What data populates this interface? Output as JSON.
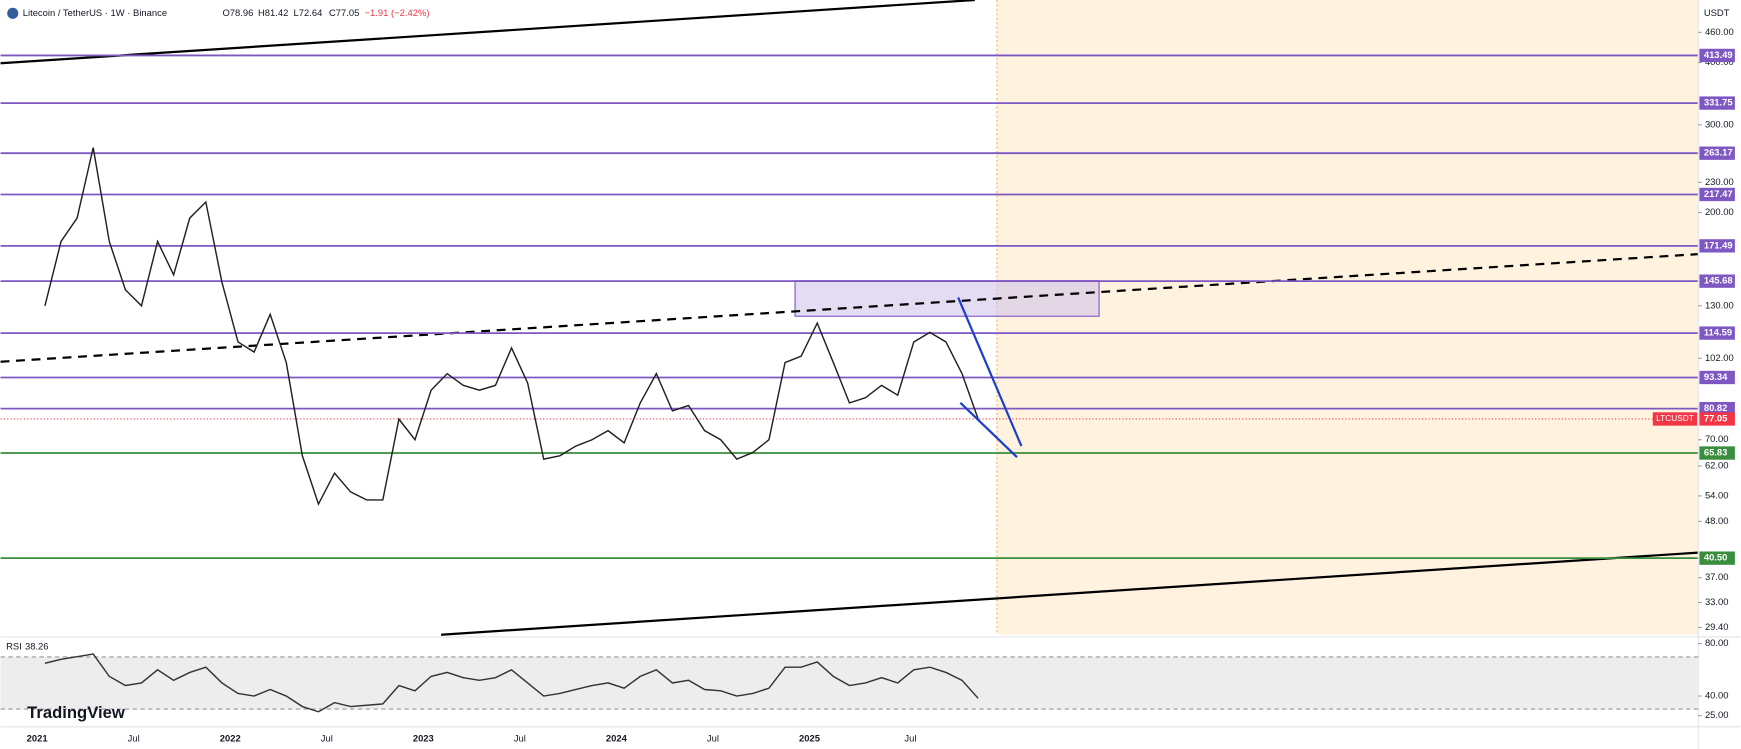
{
  "header": {
    "title": "Litecoin / TetherUS · 1W · Binance",
    "open": "O78.96",
    "high": "H81.42",
    "low": "L72.64",
    "close": "C77.05",
    "change": "−1.91 (−2.42%)"
  },
  "price_axis": {
    "unit": "USDT",
    "scale": "log",
    "ticks": [
      {
        "value": 460,
        "label": "460.00"
      },
      {
        "value": 400,
        "label": "400.00"
      },
      {
        "value": 300,
        "label": "300.00"
      },
      {
        "value": 230,
        "label": "230.00"
      },
      {
        "value": 200,
        "label": "200.00"
      },
      {
        "value": 130,
        "label": "130.00"
      },
      {
        "value": 102,
        "label": "102.00"
      },
      {
        "value": 70,
        "label": "70.00"
      },
      {
        "value": 62,
        "label": "62.00"
      },
      {
        "value": 54,
        "label": "54.00"
      },
      {
        "value": 48,
        "label": "48.00"
      },
      {
        "value": 37,
        "label": "37.00"
      },
      {
        "value": 33,
        "label": "33.00"
      },
      {
        "value": 29.4,
        "label": "29.40"
      }
    ]
  },
  "levels": [
    {
      "value": 413.49,
      "color": "#7e57c2"
    },
    {
      "value": 331.75,
      "color": "#7e57c2"
    },
    {
      "value": 263.17,
      "color": "#7e57c2"
    },
    {
      "value": 217.47,
      "color": "#7e57c2"
    },
    {
      "value": 171.49,
      "color": "#7e57c2"
    },
    {
      "value": 145.68,
      "color": "#7e57c2"
    },
    {
      "value": 114.59,
      "color": "#7e57c2"
    },
    {
      "value": 93.34,
      "color": "#7e57c2"
    },
    {
      "value": 80.82,
      "color": "#7e57c2"
    },
    {
      "value": 65.83,
      "color": "#388e3c"
    },
    {
      "value": {
        "value": 40.5,
        "label": "40.50"
      },
      "color": "#388e3c"
    }
  ],
  "last_price": {
    "symbol": "LTCUSDT",
    "value": 77.05,
    "color": "#f23645"
  },
  "time_axis": [
    "2021",
    "Jul",
    "2022",
    "Jul",
    "2023",
    "Jul",
    "2024",
    "Jul",
    "2025",
    "Jul"
  ],
  "closes": [
    130,
    175,
    195,
    270,
    175,
    140,
    130,
    175,
    150,
    195,
    210,
    145,
    110,
    105,
    125,
    100,
    65,
    52,
    60,
    55,
    53,
    53,
    77,
    70,
    88,
    95,
    90,
    88,
    90,
    107,
    91,
    64,
    65,
    68,
    70,
    73,
    69,
    83,
    95,
    80,
    82,
    73,
    70,
    64,
    66,
    70,
    100,
    103,
    120,
    100,
    83,
    85,
    90,
    86,
    110,
    115,
    110,
    95,
    77.05
  ],
  "rsi": {
    "name": "RSI",
    "last": 38.26,
    "ticks": [
      {
        "value": 80,
        "label": "80.00"
      },
      {
        "value": 40,
        "label": "40.00"
      },
      {
        "value": 25,
        "label": "25.00"
      }
    ],
    "values": [
      65,
      68,
      70,
      72,
      55,
      48,
      50,
      60,
      52,
      58,
      62,
      50,
      42,
      40,
      45,
      40,
      32,
      28,
      35,
      32,
      33,
      34,
      48,
      44,
      55,
      58,
      54,
      52,
      54,
      60,
      50,
      40,
      42,
      45,
      48,
      50,
      46,
      55,
      60,
      50,
      52,
      45,
      44,
      40,
      42,
      46,
      62,
      62,
      66,
      55,
      48,
      50,
      54,
      50,
      60,
      62,
      58,
      52,
      38.26
    ]
  },
  "brand": "TradingView"
}
